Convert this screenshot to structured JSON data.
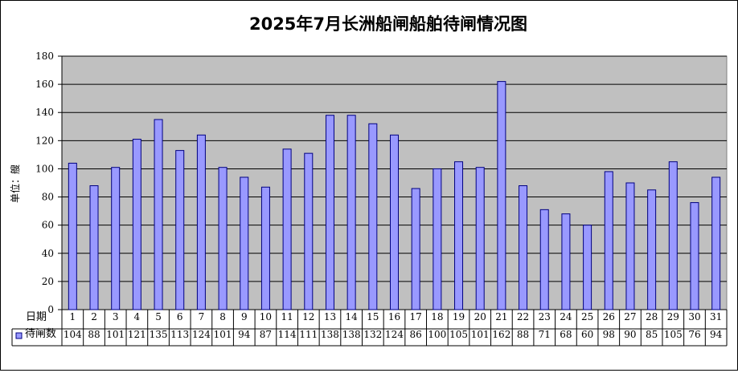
{
  "chart_data": {
    "type": "bar",
    "title": "2025年7月长洲船闸船舶待闸情况图",
    "ylabel": "单位：艘",
    "xlabel": "日期",
    "table_row_label": "待闸数",
    "ylim": [
      0,
      180
    ],
    "ytick_step": 20,
    "grid": true,
    "legend": "data-table",
    "categories": [
      "1",
      "2",
      "3",
      "4",
      "5",
      "6",
      "7",
      "8",
      "9",
      "10",
      "11",
      "12",
      "13",
      "14",
      "15",
      "16",
      "17",
      "18",
      "19",
      "20",
      "21",
      "22",
      "23",
      "24",
      "25",
      "26",
      "27",
      "28",
      "29",
      "30",
      "31"
    ],
    "series": [
      {
        "name": "待闸数",
        "values": [
          104,
          88,
          101,
          121,
          135,
          113,
          124,
          101,
          94,
          87,
          114,
          111,
          138,
          138,
          132,
          124,
          86,
          100,
          105,
          101,
          162,
          88,
          71,
          68,
          60,
          98,
          90,
          85,
          105,
          76,
          94
        ]
      }
    ],
    "colors": {
      "bar_fill": "#9999ff",
      "bar_stroke": "#000080",
      "plot_bg": "#c0c0c0",
      "grid": "#000000"
    }
  }
}
